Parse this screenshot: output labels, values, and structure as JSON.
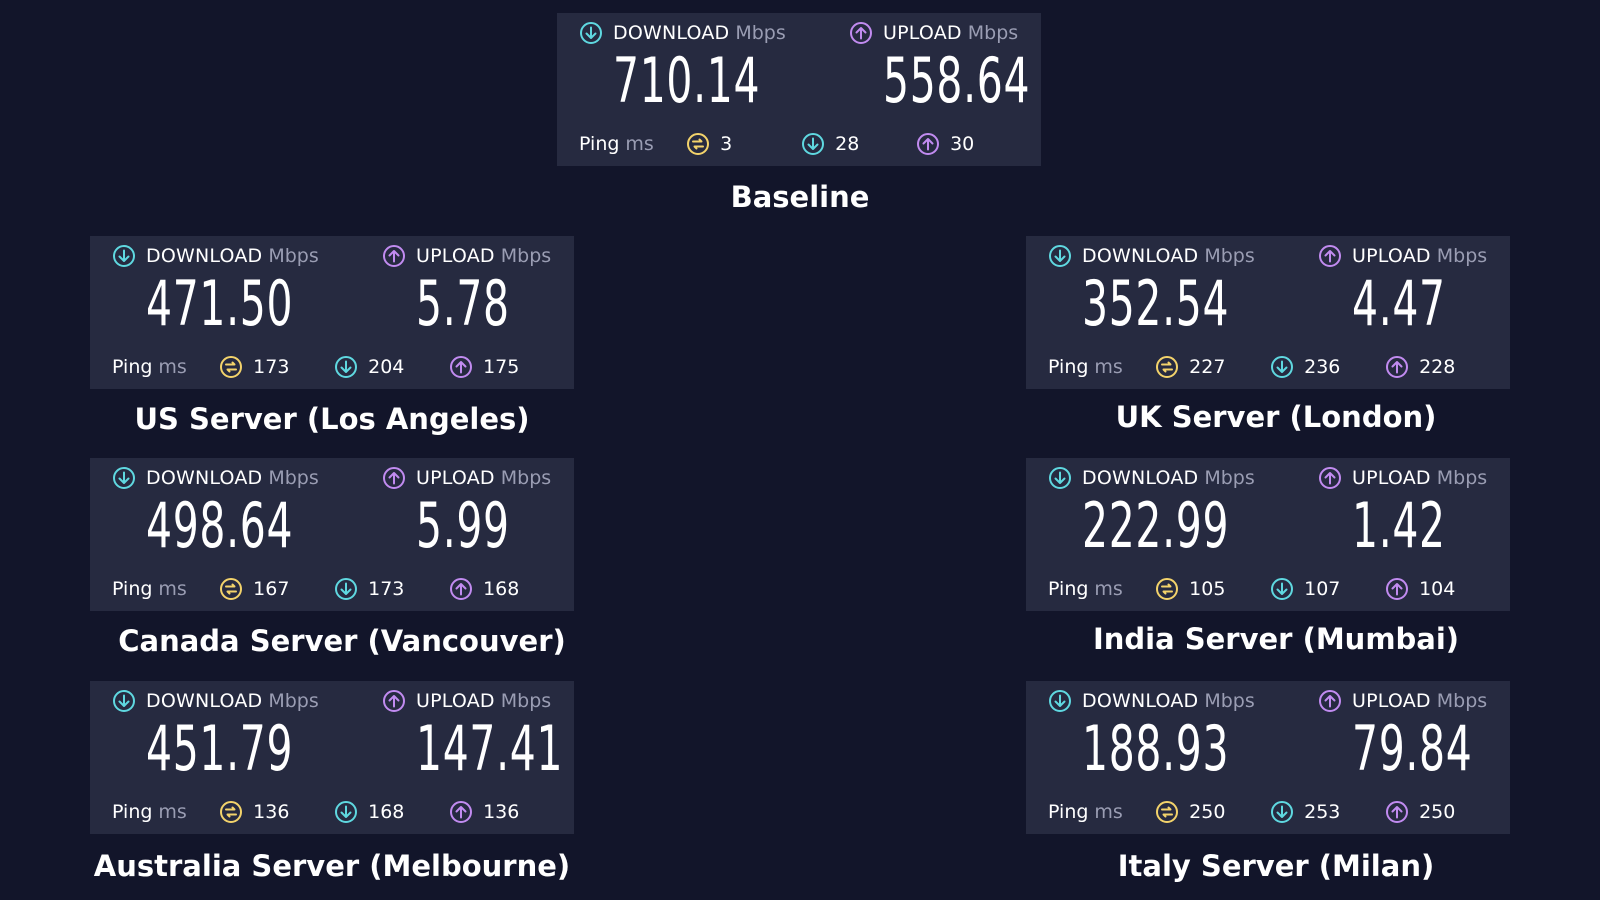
{
  "colors": {
    "background": "#12152a",
    "panel": "#262a40",
    "download_icon": "#5fd8e0",
    "upload_icon": "#c18bf0",
    "ping_icon": "#f3d36b",
    "unit_text": "#9a9db3"
  },
  "icons": {
    "download": "download-arrow-circle-icon",
    "upload": "upload-arrow-circle-icon",
    "ping": "ping-jitter-icon"
  },
  "labels": {
    "download": "DOWNLOAD",
    "upload": "UPLOAD",
    "speed_unit": "Mbps",
    "ping": "Ping",
    "ping_unit": "ms"
  },
  "tests": [
    {
      "caption": "Baseline",
      "download": "710.14",
      "upload": "558.64",
      "ping_idle": "3",
      "ping_download": "28",
      "ping_upload": "30"
    },
    {
      "caption": "US Server (Los Angeles)",
      "download": "471.50",
      "upload": "5.78",
      "ping_idle": "173",
      "ping_download": "204",
      "ping_upload": "175"
    },
    {
      "caption": "UK Server (London)",
      "download": "352.54",
      "upload": "4.47",
      "ping_idle": "227",
      "ping_download": "236",
      "ping_upload": "228"
    },
    {
      "caption": "Canada Server (Vancouver)",
      "download": "498.64",
      "upload": "5.99",
      "ping_idle": "167",
      "ping_download": "173",
      "ping_upload": "168"
    },
    {
      "caption": "India Server (Mumbai)",
      "download": "222.99",
      "upload": "1.42",
      "ping_idle": "105",
      "ping_download": "107",
      "ping_upload": "104"
    },
    {
      "caption": "Australia Server (Melbourne)",
      "download": "451.79",
      "upload": "147.41",
      "ping_idle": "136",
      "ping_download": "168",
      "ping_upload": "136"
    },
    {
      "caption": "Italy Server (Milan)",
      "download": "188.93",
      "upload": "79.84",
      "ping_idle": "250",
      "ping_download": "253",
      "ping_upload": "250"
    }
  ]
}
